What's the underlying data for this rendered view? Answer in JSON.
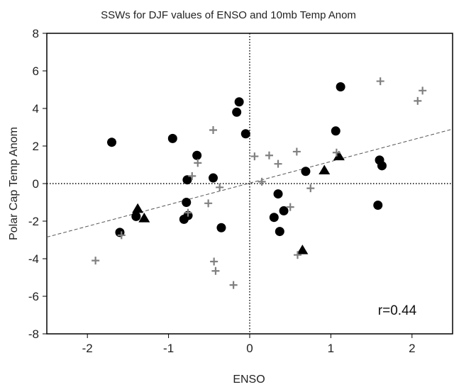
{
  "chart_data": {
    "type": "scatter",
    "title": "SSWs for DJF values of ENSO and 10mb Temp Anom",
    "xlabel": "ENSO",
    "ylabel": "Polar Cap Temp Anom",
    "xlim": [
      -2.5,
      2.5
    ],
    "ylim": [
      -8,
      8
    ],
    "xticks": [
      -2,
      -1,
      0,
      1,
      2
    ],
    "yticks": [
      -8,
      -6,
      -4,
      -2,
      0,
      2,
      4,
      6,
      8
    ],
    "reference_lines": {
      "x": 0,
      "y": 0,
      "style": "dotted"
    },
    "annotation": "r=0.44",
    "trendline": {
      "style": "dashed",
      "x": [
        -2.5,
        2.5
      ],
      "y": [
        -2.85,
        2.9
      ]
    },
    "colors": {
      "circle": "#000000",
      "triangle": "#000000",
      "plus": "#808080",
      "trend": "#555555"
    },
    "series": [
      {
        "marker": "circle",
        "points": [
          [
            -1.7,
            2.2
          ],
          [
            -0.95,
            2.4
          ],
          [
            -0.65,
            1.5
          ],
          [
            -0.77,
            0.2
          ],
          [
            -0.45,
            0.3
          ],
          [
            -0.78,
            -1.0
          ],
          [
            -0.76,
            -1.7
          ],
          [
            -0.81,
            -1.9
          ],
          [
            -0.35,
            -2.35
          ],
          [
            -1.6,
            -2.6
          ],
          [
            -1.4,
            -1.75
          ],
          [
            -0.16,
            3.8
          ],
          [
            -0.13,
            4.35
          ],
          [
            -0.05,
            2.65
          ],
          [
            0.35,
            -0.55
          ],
          [
            0.3,
            -1.8
          ],
          [
            0.42,
            -1.45
          ],
          [
            0.37,
            -2.55
          ],
          [
            0.69,
            0.65
          ],
          [
            1.06,
            2.8
          ],
          [
            1.12,
            5.15
          ],
          [
            1.6,
            1.25
          ],
          [
            1.63,
            0.95
          ],
          [
            1.58,
            -1.15
          ]
        ]
      },
      {
        "marker": "triangle",
        "points": [
          [
            -1.38,
            -1.35
          ],
          [
            -1.3,
            -1.85
          ],
          [
            0.65,
            -3.55
          ],
          [
            0.92,
            0.7
          ],
          [
            1.1,
            1.45
          ]
        ]
      },
      {
        "marker": "plus",
        "points": [
          [
            -1.9,
            -4.1
          ],
          [
            -1.58,
            -2.75
          ],
          [
            -0.71,
            0.4
          ],
          [
            -0.64,
            1.1
          ],
          [
            -0.76,
            -1.55
          ],
          [
            -0.51,
            -1.05
          ],
          [
            -0.37,
            -0.2
          ],
          [
            -0.45,
            2.85
          ],
          [
            -0.44,
            -4.15
          ],
          [
            -0.42,
            -4.65
          ],
          [
            -0.2,
            -5.4
          ],
          [
            0.06,
            1.45
          ],
          [
            0.15,
            0.1
          ],
          [
            0.24,
            1.5
          ],
          [
            0.35,
            1.05
          ],
          [
            0.5,
            -1.25
          ],
          [
            0.58,
            1.7
          ],
          [
            0.59,
            -3.8
          ],
          [
            0.75,
            -0.25
          ],
          [
            1.07,
            1.65
          ],
          [
            1.61,
            5.45
          ],
          [
            2.07,
            4.4
          ],
          [
            2.13,
            4.95
          ]
        ]
      }
    ]
  }
}
